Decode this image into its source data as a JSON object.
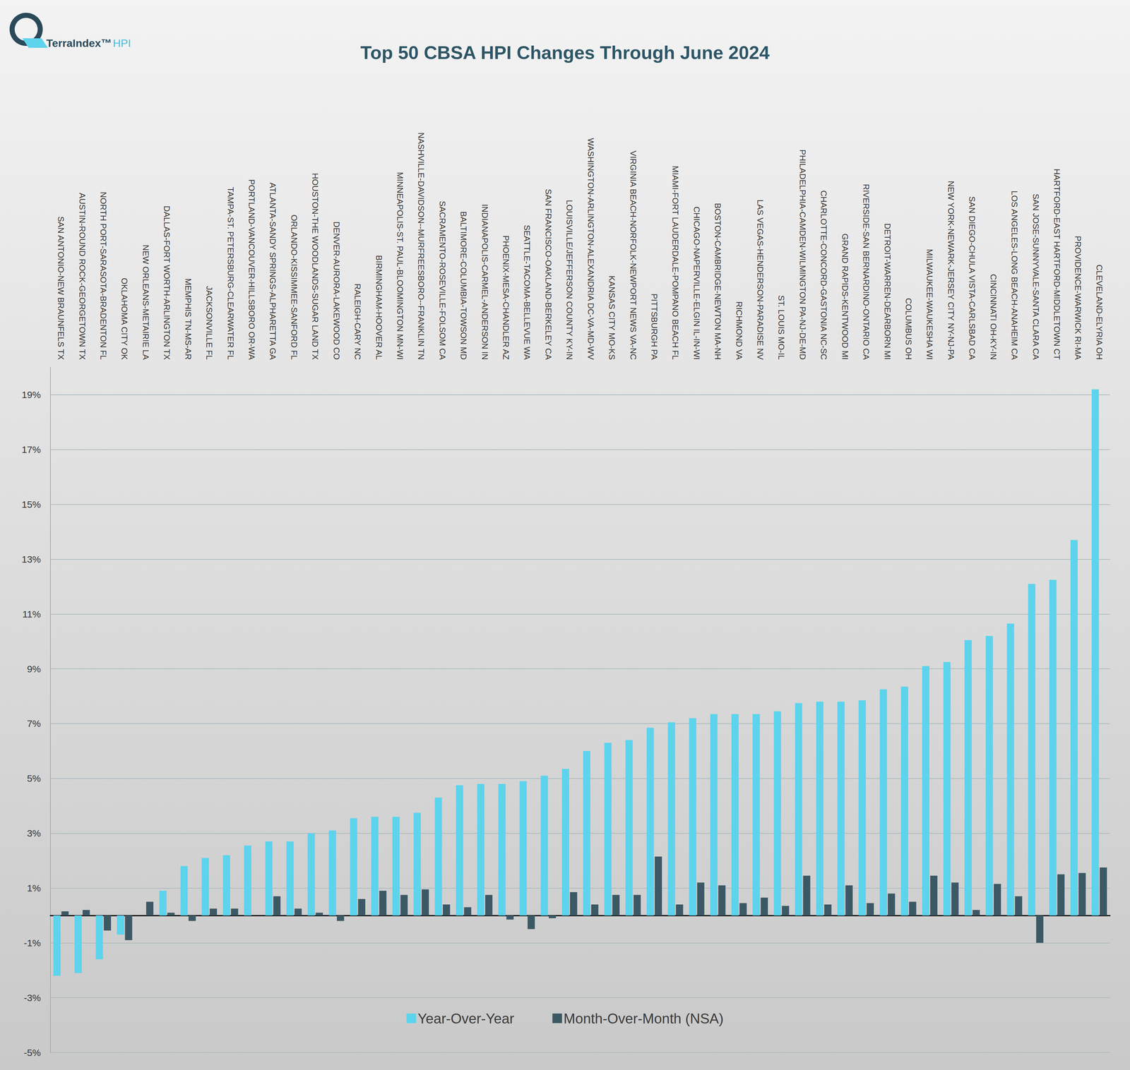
{
  "chart_data": {
    "type": "bar",
    "title": "Top 50 CBSA HPI Changes Through June 2024",
    "annotations": [
      "TerraIndex™",
      "HPI"
    ],
    "categories": [
      "SAN ANTONIO-NEW BRAUNFELS TX",
      "AUSTIN-ROUND ROCK-GEORGETOWN TX",
      "NORTH PORT-SARASOTA-BRADENTON FL",
      "OKLAHOMA CITY OK",
      "NEW ORLEANS-METAIRIE LA",
      "DALLAS-FORT WORTH-ARLINGTON TX",
      "MEMPHIS TN-MS-AR",
      "JACKSONVILLE FL",
      "TAMPA-ST. PETERSBURG-CLEARWATER FL",
      "PORTLAND-VANCOUVER-HILLSBORO OR-WA",
      "ATLANTA-SANDY SPRINGS-ALPHARETTA GA",
      "ORLANDO-KISSIMMEE-SANFORD FL",
      "HOUSTON-THE WOODLANDS-SUGAR LAND TX",
      "DENVER-AURORA-LAKEWOOD CO",
      "RALEIGH-CARY NC",
      "BIRMINGHAM-HOOVER AL",
      "MINNEAPOLIS-ST. PAUL-BLOOMINGTON MN-WI",
      "NASHVILLE-DAVIDSON--MURFREESBORO--FRANKLIN TN",
      "SACRAMENTO-ROSEVILLE-FOLSOM CA",
      "BALTIMORE-COLUMBIA-TOWSON MD",
      "INDIANAPOLIS-CARMEL-ANDERSON IN",
      "PHOENIX-MESA-CHANDLER AZ",
      "SEATTLE-TACOMA-BELLEVUE WA",
      "SAN FRANCISCO-OAKLAND-BERKELEY CA",
      "LOUISVILLE/JEFFERSON COUNTY KY-IN",
      "WASHINGTON-ARLINGTON-ALEXANDRIA DC-VA-MD-WV",
      "KANSAS CITY MO-KS",
      "VIRGINIA BEACH-NORFOLK-NEWPORT NEWS VA-NC",
      "PITTSBURGH PA",
      "MIAMI-FORT LAUDERDALE-POMPANO BEACH FL",
      "CHICAGO-NAPERVILLE-ELGIN IL-IN-WI",
      "BOSTON-CAMBRIDGE-NEWTON MA-NH",
      "RICHMOND VA",
      "LAS VEGAS-HENDERSON-PARADISE NV",
      "ST. LOUIS MO-IL",
      "PHILADELPHIA-CAMDEN-WILMINGTON PA-NJ-DE-MD",
      "CHARLOTTE-CONCORD-GASTONIA NC-SC",
      "GRAND RAPIDS-KENTWOOD MI",
      "RIVERSIDE-SAN BERNARDINO-ONTARIO CA",
      "DETROIT-WARREN-DEARBORN MI",
      "COLUMBUS OH",
      "MILWAUKEE-WAUKESHA WI",
      "NEW YORK-NEWARK-JERSEY CITY NY-NJ-PA",
      "SAN DIEGO-CHULA VISTA-CARLSBAD CA",
      "CINCINNATI OH-KY-IN",
      "LOS ANGELES-LONG BEACH-ANAHEIM CA",
      "SAN JOSE-SUNNYVALE-SANTA CLARA CA",
      "HARTFORD-EAST HARTFORD-MIDDLETOWN CT",
      "PROVIDENCE-WARWICK RI-MA",
      "CLEVELAND-ELYRIA OH"
    ],
    "series": [
      {
        "name": "Year-Over-Year",
        "color": "#5dd3ec",
        "values": [
          -2.2,
          -2.1,
          -1.6,
          -0.7,
          0,
          0.9,
          1.8,
          2.1,
          2.2,
          2.55,
          2.7,
          2.7,
          3.0,
          3.1,
          3.55,
          3.6,
          3.6,
          3.75,
          4.3,
          4.75,
          4.8,
          4.8,
          4.9,
          5.1,
          5.35,
          6.0,
          6.3,
          6.4,
          6.85,
          7.05,
          7.2,
          7.35,
          7.35,
          7.35,
          7.45,
          7.75,
          7.8,
          7.8,
          7.85,
          8.25,
          8.35,
          9.1,
          9.25,
          10.05,
          10.2,
          10.65,
          12.1,
          12.25,
          13.7,
          19.2
        ]
      },
      {
        "name": "Month-Over-Month (NSA)",
        "color": "#3b5864",
        "values": [
          0.15,
          0.2,
          -0.55,
          -0.9,
          0.5,
          0.1,
          -0.2,
          0.25,
          0.25,
          0,
          0.7,
          0.25,
          0.1,
          -0.2,
          0.6,
          0.9,
          0.75,
          0.95,
          0.4,
          0.3,
          0.75,
          -0.15,
          -0.5,
          -0.1,
          0.85,
          0.4,
          0.75,
          0.75,
          2.15,
          0.4,
          1.2,
          1.1,
          0.45,
          0.65,
          0.35,
          1.45,
          0.4,
          1.1,
          0.45,
          0.8,
          0.5,
          1.45,
          1.2,
          0.2,
          1.15,
          0.7,
          -1.0,
          1.5,
          1.55,
          1.75
        ]
      }
    ],
    "ylim": [
      -5,
      20
    ],
    "yticks": [
      {
        "value": -5,
        "label": "-5%"
      },
      {
        "value": -3,
        "label": "-3%"
      },
      {
        "value": -1,
        "label": "-1%"
      },
      {
        "value": 1,
        "label": "1%"
      },
      {
        "value": 3,
        "label": "3%"
      },
      {
        "value": 5,
        "label": "5%"
      },
      {
        "value": 7,
        "label": "7%"
      },
      {
        "value": 9,
        "label": "9%"
      },
      {
        "value": 11,
        "label": "11%"
      },
      {
        "value": 13,
        "label": "13%"
      },
      {
        "value": 15,
        "label": "15%"
      },
      {
        "value": 17,
        "label": "17%"
      },
      {
        "value": 19,
        "label": "19%"
      }
    ],
    "grid": true,
    "legend": "bottom"
  }
}
